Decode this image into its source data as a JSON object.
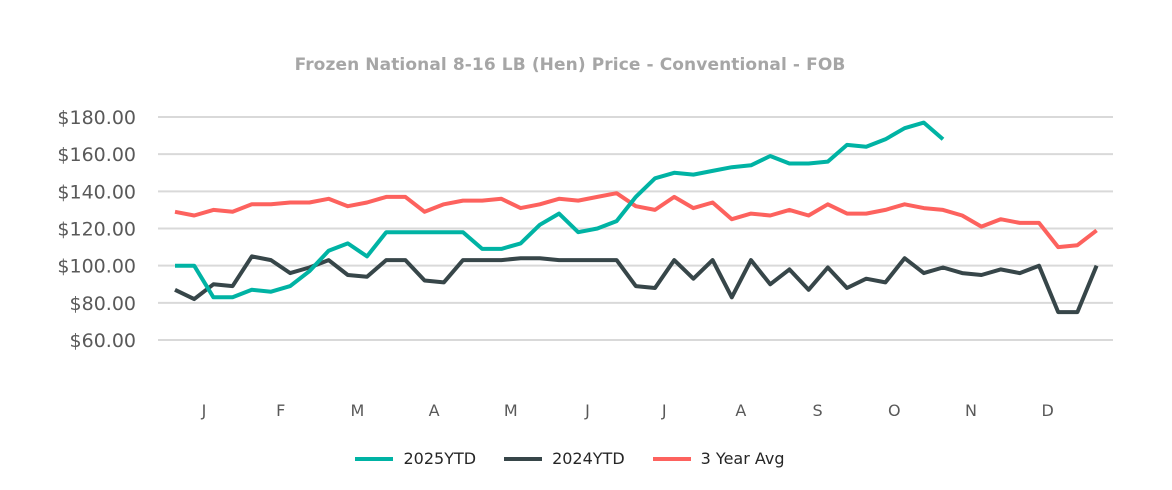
{
  "chart_data": {
    "type": "line",
    "title": "Frozen National 8-16 LB (Hen) Price - Conventional - FOB",
    "xlabel": "",
    "ylabel": "",
    "ylim": [
      60,
      180
    ],
    "yticks": [
      60,
      80,
      100,
      120,
      140,
      160,
      180
    ],
    "ytick_labels": [
      "$60.00",
      "$80.00",
      "$100.00",
      "$120.00",
      "$140.00",
      "$160.00",
      "$180.00"
    ],
    "x_month_labels": [
      "J",
      "F",
      "M",
      "A",
      "M",
      "J",
      "J",
      "A",
      "S",
      "O",
      "N",
      "D"
    ],
    "x_points": 49,
    "grid": true,
    "legend_position": "bottom",
    "series": [
      {
        "name": "2025YTD",
        "color": "#00b3a4",
        "values": [
          100,
          100,
          83,
          83,
          87,
          86,
          89,
          97,
          108,
          112,
          105,
          118,
          118,
          118,
          118,
          118,
          109,
          109,
          112,
          122,
          128,
          118,
          120,
          124,
          137,
          147,
          150,
          149,
          151,
          153,
          154,
          159,
          155,
          155,
          156,
          165,
          164,
          168,
          174,
          177,
          168
        ]
      },
      {
        "name": "2024YTD",
        "color": "#374649",
        "values": [
          87,
          82,
          90,
          89,
          105,
          103,
          96,
          99,
          103,
          95,
          94,
          103,
          103,
          92,
          91,
          103,
          103,
          103,
          104,
          104,
          103,
          103,
          103,
          103,
          89,
          88,
          103,
          93,
          103,
          83,
          103,
          90,
          98,
          87,
          99,
          88,
          93,
          91,
          104,
          96,
          99,
          96,
          95,
          98,
          96,
          100,
          75,
          75,
          100
        ]
      },
      {
        "name": "3 Year Avg",
        "color": "#fd625e",
        "values": [
          129,
          127,
          130,
          129,
          133,
          133,
          134,
          134,
          136,
          132,
          134,
          137,
          137,
          129,
          133,
          135,
          135,
          136,
          131,
          133,
          136,
          135,
          137,
          139,
          132,
          130,
          137,
          131,
          134,
          125,
          128,
          127,
          130,
          127,
          133,
          128,
          128,
          130,
          133,
          131,
          130,
          127,
          121,
          125,
          123,
          123,
          110,
          111,
          119
        ]
      }
    ]
  }
}
